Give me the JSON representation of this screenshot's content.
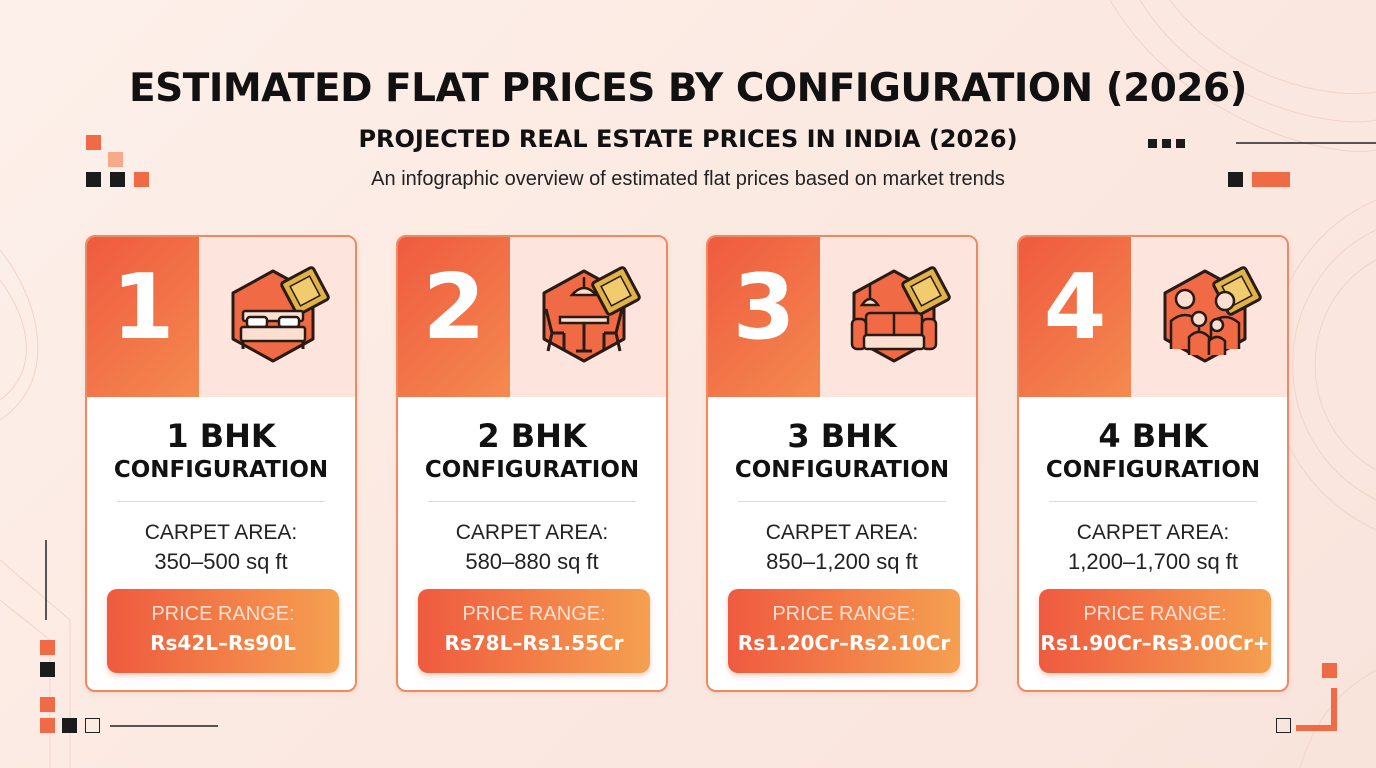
{
  "header": {
    "title": "ESTIMATED FLAT PRICES BY CONFIGURATION (2026)",
    "subtitle": "PROJECTED REAL ESTATE PRICES IN INDIA (2026)",
    "tagline": "An infographic overview of estimated flat prices based on market trends"
  },
  "colors": {
    "accent": "#ef5a3f",
    "accent_light": "#f5a050",
    "card_top": "#fde4dc",
    "icon_gold": "#e0b24a"
  },
  "cards": [
    {
      "number": "1",
      "bhk": "1 BHK",
      "config": "CONFIGURATION",
      "area_label": "CARPET AREA:",
      "area": "350–500 sq ft",
      "price_label": "PRICE RANGE:",
      "price": "Rs42L–Rs90L",
      "icon": "bed-icon"
    },
    {
      "number": "2",
      "bhk": "2 BHK",
      "config": "CONFIGURATION",
      "area_label": "CARPET AREA:",
      "area": "580–880 sq ft",
      "price_label": "PRICE RANGE:",
      "price": "Rs78L–Rs1.55Cr",
      "icon": "dining-table-icon"
    },
    {
      "number": "3",
      "bhk": "3 BHK",
      "config": "CONFIGURATION",
      "area_label": "CARPET AREA:",
      "area": "850–1,200 sq ft",
      "price_label": "PRICE RANGE:",
      "price": "Rs1.20Cr–Rs2.10Cr",
      "icon": "sofa-icon"
    },
    {
      "number": "4",
      "bhk": "4 BHK",
      "config": "CONFIGURATION",
      "area_label": "CARPET AREA:",
      "area": "1,200–1,700 sq ft",
      "price_label": "PRICE RANGE:",
      "price": "Rs1.90Cr–Rs3.00Cr+",
      "icon": "family-icon"
    }
  ]
}
